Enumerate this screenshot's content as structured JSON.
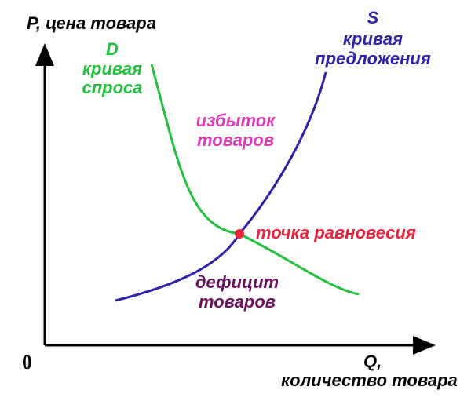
{
  "axes": {
    "y_label": "P, цена товара",
    "x_label_line1": "Q,",
    "x_label_line2": "количество товара",
    "origin_label": "0"
  },
  "demand": {
    "letter": "D",
    "line1": "кривая",
    "line2": "спроса",
    "color": "#22c03c"
  },
  "supply": {
    "letter": "S",
    "line1": "кривая",
    "line2": "предложения",
    "color": "#2d22a8"
  },
  "surplus": {
    "line1": "избыток",
    "line2": "товаров",
    "color": "#e03ab8"
  },
  "deficit": {
    "line1": "дефицит",
    "line2": "товаров",
    "color": "#6b1060"
  },
  "equilibrium": {
    "label": "точка равновесия",
    "color": "#e8233a"
  }
}
